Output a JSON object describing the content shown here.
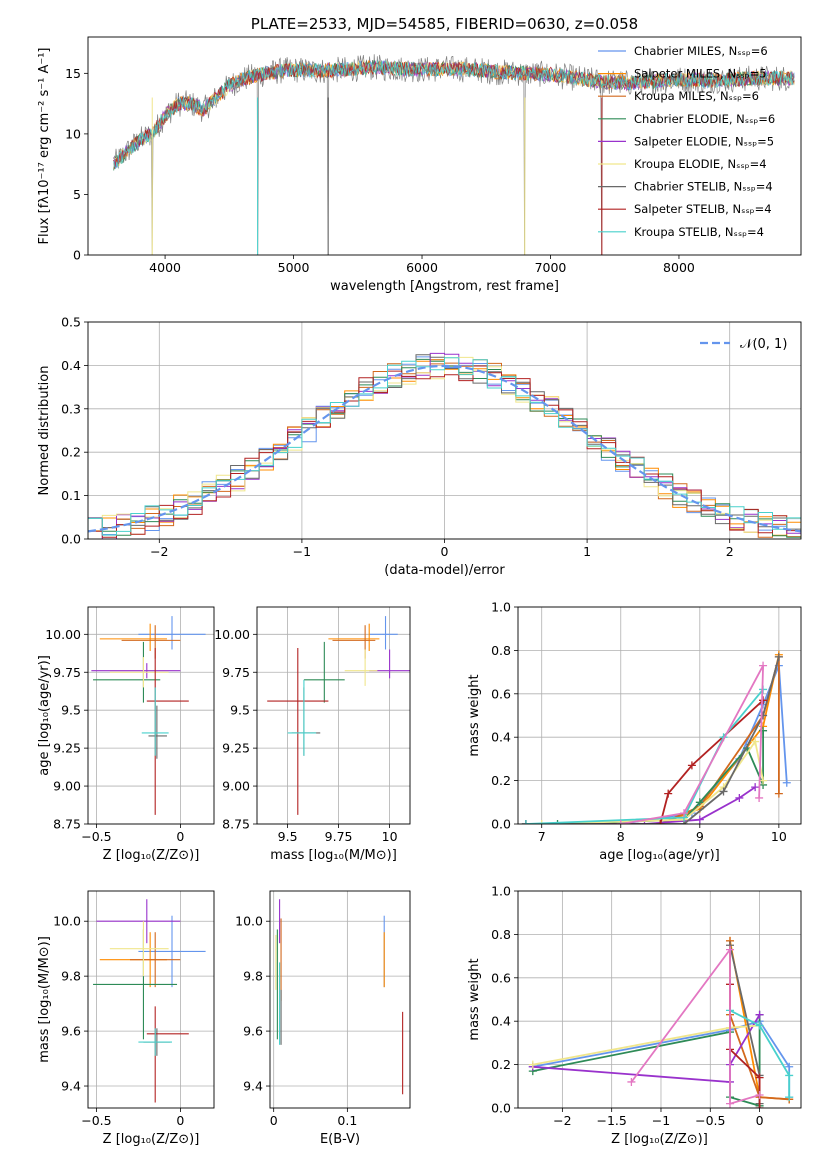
{
  "colors": [
    "#6495ED",
    "#FF8C00",
    "#D2691E",
    "#2E8B57",
    "#9932CC",
    "#F0E68C",
    "#696969",
    "#B22222",
    "#48D1CC"
  ],
  "chart_data": [
    {
      "id": "spectrum",
      "type": "line",
      "title": "PLATE=2533, MJD=54585, FIBERID=0630, z=0.058",
      "xlabel": "wavelength [Angstrom, rest frame]",
      "ylabel": "Flux [fλ10⁻¹⁷ erg cm⁻² s⁻¹ A⁻¹]",
      "xlim": [
        3400,
        8950
      ],
      "ylim": [
        0,
        18
      ],
      "xticks": [
        4000,
        5000,
        6000,
        7000,
        8000
      ],
      "yticks": [
        0,
        5,
        10,
        15
      ],
      "legend_position": "right",
      "series": [
        {
          "name": "Chabrier MILES, Nₛₛₚ=6"
        },
        {
          "name": "Salpeter MILES, Nₛₛₚ=5"
        },
        {
          "name": "Kroupa MILES, Nₛₛₚ=6"
        },
        {
          "name": "Chabrier ELODIE, Nₛₛₚ=6"
        },
        {
          "name": "Salpeter ELODIE, Nₛₛₚ=5"
        },
        {
          "name": "Kroupa ELODIE, Nₛₛₚ=4"
        },
        {
          "name": "Chabrier STELIB, Nₛₛₚ=4"
        },
        {
          "name": "Salpeter STELIB, Nₛₛₚ=4"
        },
        {
          "name": "Kroupa STELIB, Nₛₛₚ=4"
        }
      ],
      "envelope": [
        [
          3600,
          7.5
        ],
        [
          3700,
          8.5
        ],
        [
          3800,
          9.5
        ],
        [
          3900,
          10
        ],
        [
          4000,
          11.5
        ],
        [
          4100,
          12.5
        ],
        [
          4200,
          12.5
        ],
        [
          4300,
          12
        ],
        [
          4400,
          13
        ],
        [
          4500,
          14
        ],
        [
          4600,
          14.5
        ],
        [
          4700,
          14.8
        ],
        [
          4800,
          15
        ],
        [
          4900,
          15.2
        ],
        [
          5000,
          15.3
        ],
        [
          5200,
          15.2
        ],
        [
          5400,
          15.3
        ],
        [
          5600,
          15.5
        ],
        [
          5800,
          15.4
        ],
        [
          6000,
          15.3
        ],
        [
          6200,
          15.4
        ],
        [
          6400,
          15.3
        ],
        [
          6600,
          15.1
        ],
        [
          6800,
          15
        ],
        [
          7000,
          14.9
        ],
        [
          7200,
          14.6
        ],
        [
          7400,
          14.3
        ],
        [
          7600,
          14.2
        ],
        [
          7800,
          14.3
        ],
        [
          8000,
          14.5
        ],
        [
          8200,
          14.4
        ],
        [
          8400,
          14.5
        ],
        [
          8600,
          14.6
        ],
        [
          8900,
          14.6
        ]
      ],
      "data_spikes": [
        [
          3900,
          0
        ],
        [
          4720,
          0
        ],
        [
          5270,
          0
        ],
        [
          6800,
          0
        ],
        [
          7400,
          0
        ]
      ]
    },
    {
      "id": "residuals",
      "type": "histogram",
      "xlabel": "(data-model)/error",
      "ylabel": "Normed distribution",
      "xlim": [
        -2.5,
        2.5
      ],
      "ylim": [
        0,
        0.5
      ],
      "xticks": [
        -2,
        -1,
        0,
        1,
        2
      ],
      "yticks": [
        0.0,
        0.1,
        0.2,
        0.3,
        0.4,
        0.5
      ],
      "legend": {
        "label": "𝒩(0, 1)",
        "color": "#6495ED",
        "position": "upper right"
      },
      "bin_width": 0.1
    },
    {
      "id": "age-vs-Z",
      "type": "errorbar",
      "xlabel": "Z [log₁₀(Z/Z⊙)]",
      "ylabel": "age  [log₁₀(age/yr)]",
      "xlim": [
        -0.55,
        0.2
      ],
      "ylim": [
        8.75,
        10.18
      ],
      "xticks": [
        -0.5,
        0.0
      ],
      "yticks": [
        8.75,
        9.0,
        9.25,
        9.5,
        9.75,
        10.0
      ],
      "points": [
        {
          "x": -0.05,
          "y": 10.0,
          "xerr": [
            0.2,
            0.2
          ],
          "yerr": [
            0.1,
            0.12
          ]
        },
        {
          "x": -0.18,
          "y": 9.97,
          "xerr": [
            0.3,
            0.1
          ],
          "yerr": [
            0.08,
            0.1
          ]
        },
        {
          "x": -0.15,
          "y": 9.96,
          "xerr": [
            0.2,
            0.15
          ],
          "yerr": [
            0.12,
            0.1
          ]
        },
        {
          "x": -0.22,
          "y": 9.7,
          "xerr": [
            0.3,
            0.1
          ],
          "yerr": [
            0.15,
            0.25
          ]
        },
        {
          "x": -0.2,
          "y": 9.76,
          "xerr": [
            0.33,
            0.2
          ],
          "yerr": [
            0.05,
            0.05
          ]
        },
        {
          "x": -0.22,
          "y": 9.75,
          "xerr": [
            0.2,
            0.15
          ],
          "yerr": [
            0.1,
            0.1
          ]
        },
        {
          "x": -0.14,
          "y": 9.33,
          "xerr": [
            0.05,
            0.06
          ],
          "yerr": [
            0.15,
            0.2
          ]
        },
        {
          "x": -0.15,
          "y": 9.56,
          "xerr": [
            0.05,
            0.2
          ],
          "yerr": [
            0.75,
            0.35
          ]
        },
        {
          "x": -0.15,
          "y": 9.35,
          "xerr": [
            0.08,
            0.08
          ],
          "yerr": [
            0.15,
            0.3
          ]
        }
      ]
    },
    {
      "id": "age-vs-mass",
      "type": "errorbar",
      "xlabel": "mass [log₁₀(M/M⊙)]",
      "ylabel": "",
      "xlim": [
        9.35,
        10.1
      ],
      "ylim": [
        8.75,
        10.18
      ],
      "xticks": [
        9.5,
        9.75,
        10.0
      ],
      "yticks": [
        8.75,
        9.0,
        9.25,
        9.5,
        9.75,
        10.0
      ],
      "points": [
        {
          "x": 9.98,
          "y": 10.0,
          "xerr": [
            0.08,
            0.06
          ],
          "yerr": [
            0.1,
            0.12
          ]
        },
        {
          "x": 9.9,
          "y": 9.97,
          "xerr": [
            0.2,
            0.05
          ],
          "yerr": [
            0.08,
            0.1
          ]
        },
        {
          "x": 9.88,
          "y": 9.96,
          "xerr": [
            0.16,
            0.05
          ],
          "yerr": [
            0.12,
            0.1
          ]
        },
        {
          "x": 9.68,
          "y": 9.7,
          "xerr": [
            0.1,
            0.1
          ],
          "yerr": [
            0.15,
            0.25
          ]
        },
        {
          "x": 10.0,
          "y": 9.76,
          "xerr": [
            0.1,
            0.1
          ],
          "yerr": [
            0.05,
            0.14
          ]
        },
        {
          "x": 9.88,
          "y": 9.76,
          "xerr": [
            0.1,
            0.06
          ],
          "yerr": [
            0.1,
            0.14
          ]
        },
        {
          "x": 9.58,
          "y": 9.35,
          "xerr": [
            0.06,
            0.08
          ],
          "yerr": [
            0.15,
            0.3
          ]
        },
        {
          "x": 9.55,
          "y": 9.56,
          "xerr": [
            0.15,
            0.15
          ],
          "yerr": [
            0.75,
            0.35
          ]
        },
        {
          "x": 9.58,
          "y": 9.35,
          "xerr": [
            0.08,
            0.06
          ],
          "yerr": [
            0.15,
            0.35
          ]
        }
      ]
    },
    {
      "id": "massweight-vs-age",
      "type": "line",
      "xlabel": "age  [log₁₀(age/yr)]",
      "ylabel": "mass weight",
      "xlim": [
        6.7,
        10.28
      ],
      "ylim": [
        0,
        1
      ],
      "xticks": [
        7,
        8,
        9,
        10
      ],
      "yticks": [
        0.0,
        0.2,
        0.4,
        0.6,
        0.8,
        1.0
      ],
      "series": [
        {
          "x": [
            6.8,
            8.0,
            8.9,
            9.5,
            9.8,
            10.0,
            10.1
          ],
          "y": [
            0.0,
            0.0,
            0.05,
            0.3,
            0.55,
            0.73,
            0.19
          ]
        },
        {
          "x": [
            6.8,
            8.5,
            9.0,
            9.8,
            10.0
          ],
          "y": [
            0.0,
            0.0,
            0.07,
            0.45,
            0.78
          ]
        },
        {
          "x": [
            6.8,
            8.5,
            9.0,
            9.8,
            10.0,
            10.0
          ],
          "y": [
            0.0,
            0.0,
            0.08,
            0.5,
            0.77,
            0.14
          ]
        },
        {
          "x": [
            7.2,
            8.8,
            9.0,
            9.6,
            9.8,
            9.8
          ],
          "y": [
            0.0,
            0.02,
            0.1,
            0.35,
            0.18,
            0.43
          ]
        },
        {
          "x": [
            6.8,
            8.3,
            9.0,
            9.5,
            9.7
          ],
          "y": [
            0.0,
            0.0,
            0.02,
            0.12,
            0.17
          ]
        },
        {
          "x": [
            7.0,
            8.8,
            9.3,
            9.7,
            9.8
          ],
          "y": [
            0.0,
            0.02,
            0.17,
            0.38,
            0.2
          ]
        },
        {
          "x": [
            6.8,
            8.8,
            9.3,
            9.8,
            10.0
          ],
          "y": [
            0.0,
            0.0,
            0.15,
            0.5,
            0.77
          ]
        },
        {
          "x": [
            8.5,
            8.6,
            8.9,
            9.8
          ],
          "y": [
            0.0,
            0.14,
            0.27,
            0.57
          ]
        },
        {
          "x": [
            6.8,
            8.8,
            9.3,
            9.8
          ],
          "y": [
            0.0,
            0.03,
            0.4,
            0.62
          ]
        },
        {
          "x": [
            8.0,
            8.8,
            9.8,
            9.75
          ],
          "y": [
            0.0,
            0.05,
            0.73,
            0.12
          ],
          "color": "#E377C2"
        }
      ]
    },
    {
      "id": "mass-vs-Z",
      "type": "errorbar",
      "xlabel": "Z [log₁₀(Z/Z⊙)]",
      "ylabel": "mass [log₁₀(M/M⊙)]",
      "xlim": [
        -0.55,
        0.2
      ],
      "ylim": [
        9.32,
        10.11
      ],
      "xticks": [
        -0.5,
        0.0
      ],
      "yticks": [
        9.4,
        9.6,
        9.8,
        10.0
      ],
      "points": [
        {
          "x": -0.05,
          "y": 9.89,
          "xerr": [
            0.2,
            0.2
          ],
          "yerr": [
            0.13,
            0.13
          ]
        },
        {
          "x": -0.18,
          "y": 9.86,
          "xerr": [
            0.3,
            0.1
          ],
          "yerr": [
            0.1,
            0.1
          ]
        },
        {
          "x": -0.15,
          "y": 9.86,
          "xerr": [
            0.15,
            0.15
          ],
          "yerr": [
            0.1,
            0.1
          ]
        },
        {
          "x": -0.22,
          "y": 9.77,
          "xerr": [
            0.3,
            0.2
          ],
          "yerr": [
            0.2,
            0.2
          ]
        },
        {
          "x": -0.2,
          "y": 10.0,
          "xerr": [
            0.3,
            0.2
          ],
          "yerr": [
            0.08,
            0.08
          ]
        },
        {
          "x": -0.22,
          "y": 9.9,
          "xerr": [
            0.2,
            0.15
          ],
          "yerr": [
            0.1,
            0.1
          ]
        },
        {
          "x": -0.14,
          "y": 9.56,
          "xerr": [
            0.08,
            0.08
          ],
          "yerr": [
            0.05,
            0.05
          ]
        },
        {
          "x": -0.15,
          "y": 9.59,
          "xerr": [
            0.05,
            0.2
          ],
          "yerr": [
            0.25,
            0.1
          ]
        },
        {
          "x": -0.15,
          "y": 9.56,
          "xerr": [
            0.1,
            0.1
          ],
          "yerr": [
            0.05,
            0.05
          ]
        }
      ]
    },
    {
      "id": "mass-vs-ebv",
      "type": "errorbar",
      "xlabel": "E(B-V)",
      "ylabel": "",
      "xlim": [
        -0.005,
        0.185
      ],
      "ylim": [
        9.32,
        10.11
      ],
      "xticks": [
        0.0,
        0.1
      ],
      "yticks": [
        9.4,
        9.6,
        9.8,
        10.0
      ],
      "points": [
        {
          "x": 0.15,
          "y": 9.89,
          "xerr": [
            0,
            0
          ],
          "yerr": [
            0.13,
            0.13
          ]
        },
        {
          "x": 0.15,
          "y": 9.86,
          "xerr": [
            0,
            0
          ],
          "yerr": [
            0.1,
            0.1
          ]
        },
        {
          "x": 0.01,
          "y": 9.86,
          "xerr": [
            0,
            0
          ],
          "yerr": [
            0.15,
            0.15
          ]
        },
        {
          "x": 0.005,
          "y": 9.77,
          "xerr": [
            0,
            0
          ],
          "yerr": [
            0.2,
            0.2
          ]
        },
        {
          "x": 0.008,
          "y": 10.0,
          "xerr": [
            0,
            0
          ],
          "yerr": [
            0.08,
            0.08
          ]
        },
        {
          "x": 0.003,
          "y": 9.85,
          "xerr": [
            0,
            0
          ],
          "yerr": [
            0.1,
            0.1
          ]
        },
        {
          "x": 0.01,
          "y": 9.65,
          "xerr": [
            0,
            0
          ],
          "yerr": [
            0.1,
            0.1
          ]
        },
        {
          "x": 0.175,
          "y": 9.52,
          "xerr": [
            0,
            0
          ],
          "yerr": [
            0.15,
            0.15
          ]
        },
        {
          "x": 0.008,
          "y": 9.7,
          "xerr": [
            0,
            0
          ],
          "yerr": [
            0.15,
            0.15
          ]
        }
      ]
    },
    {
      "id": "massweight-vs-Z",
      "type": "line",
      "xlabel": "Z [log₁₀(Z/Z⊙)]",
      "ylabel": "mass weight",
      "xlim": [
        -2.45,
        0.42
      ],
      "ylim": [
        0,
        1
      ],
      "xticks": [
        -2.0,
        -1.5,
        -1.0,
        -0.5,
        0.0
      ],
      "yticks": [
        0.0,
        0.2,
        0.4,
        0.6,
        0.8,
        1.0
      ],
      "series": [
        {
          "x": [
            -2.3,
            -0.3,
            0.0,
            0.3,
            0.3
          ],
          "y": [
            0.19,
            0.36,
            0.4,
            0.19,
            0.05
          ]
        },
        {
          "x": [
            -0.3,
            0.0,
            0.3
          ],
          "y": [
            0.77,
            0.05,
            0.04
          ]
        },
        {
          "x": [
            -0.3,
            -0.3,
            0.0,
            0.3
          ],
          "y": [
            0.77,
            0.43,
            0.05,
            0.04
          ]
        },
        {
          "x": [
            -2.3,
            -0.3,
            -0.3,
            0.0,
            0.0
          ],
          "y": [
            0.17,
            0.35,
            0.05,
            0.01,
            0.43
          ]
        },
        {
          "x": [
            -2.3,
            -0.3,
            -0.3,
            0.0
          ],
          "y": [
            0.19,
            0.12,
            0.2,
            0.43
          ]
        },
        {
          "x": [
            -2.3,
            -0.3,
            0.0
          ],
          "y": [
            0.2,
            0.37,
            0.38
          ]
        },
        {
          "x": [
            -0.3,
            0.0,
            0.0
          ],
          "y": [
            0.75,
            0.15,
            0.02
          ]
        },
        {
          "x": [
            -0.3,
            -0.3,
            0.0,
            0.0
          ],
          "y": [
            0.57,
            0.27,
            0.14,
            0.0
          ]
        },
        {
          "x": [
            -0.3,
            0.0,
            0.3,
            0.3
          ],
          "y": [
            0.45,
            0.38,
            0.15,
            0.05
          ]
        },
        {
          "x": [
            -1.3,
            -0.3,
            -0.3,
            0.0
          ],
          "y": [
            0.12,
            0.73,
            0.02,
            0.06
          ],
          "color": "#E377C2"
        }
      ]
    }
  ]
}
